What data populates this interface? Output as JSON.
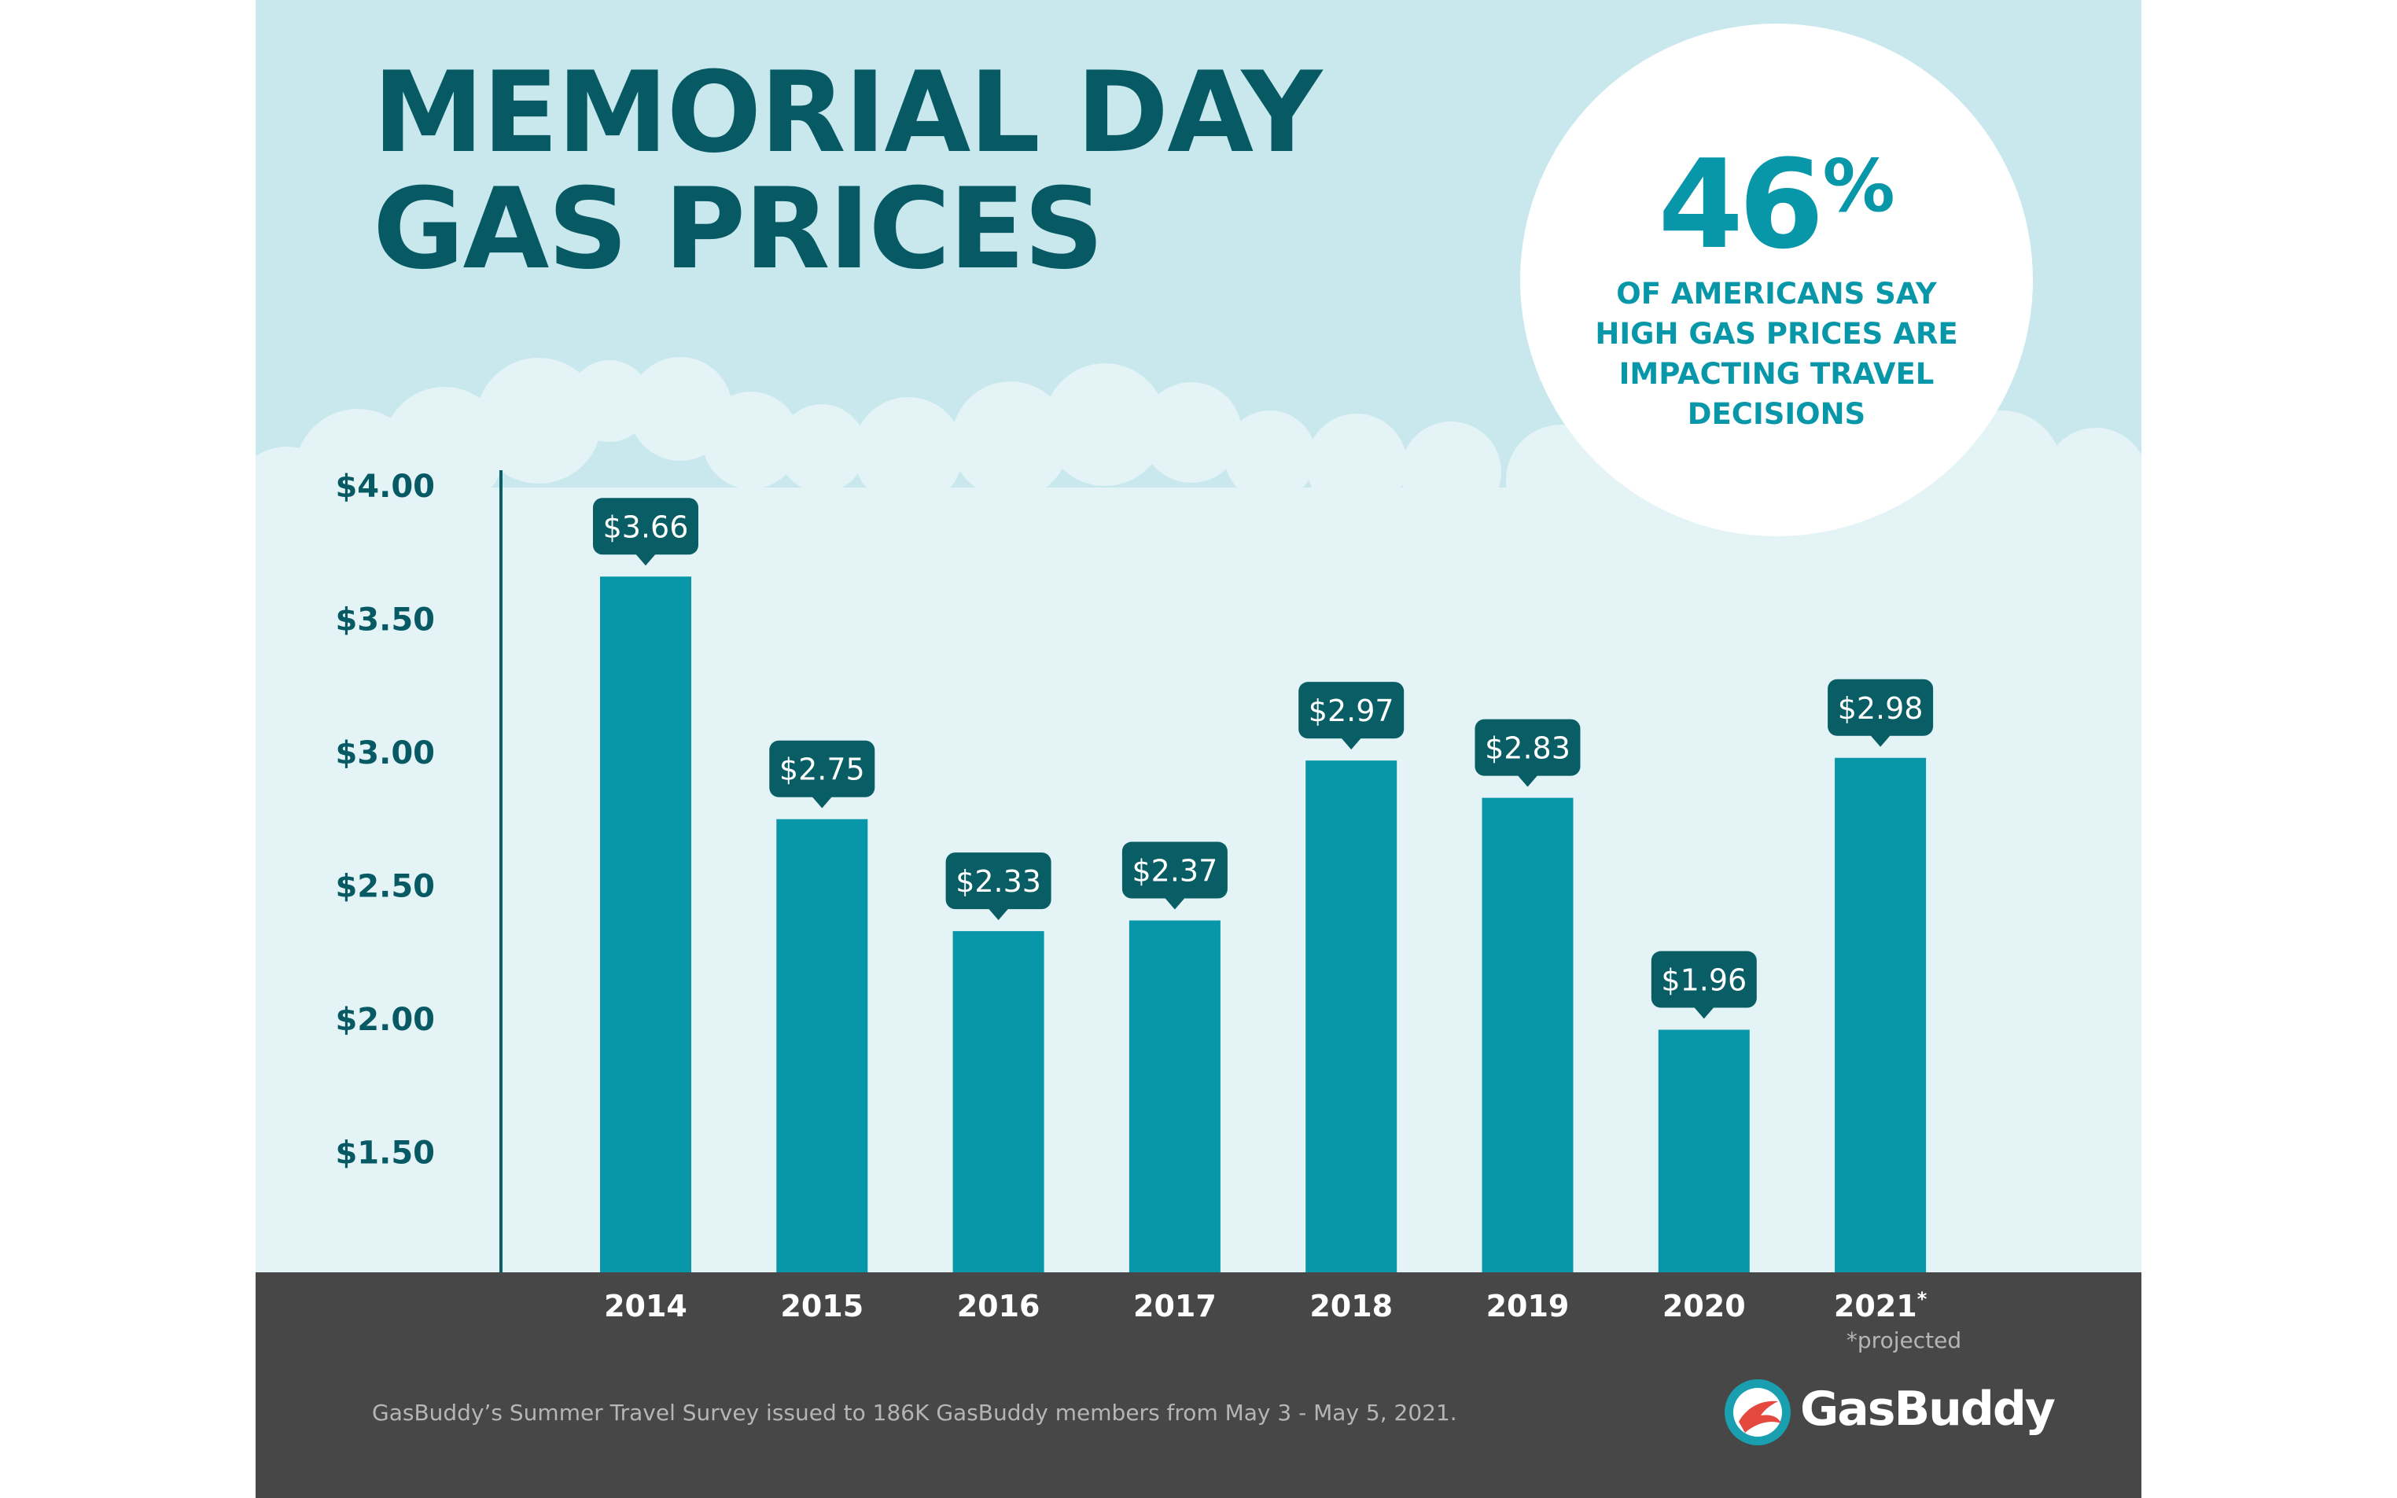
{
  "title": {
    "line1": "MEMORIAL DAY",
    "line2": "GAS PRICES"
  },
  "callout": {
    "value": "46",
    "unit": "%",
    "caption": "OF AMERICANS SAY\nHIGH GAS PRICES ARE\nIMPACTING TRAVEL\nDECISIONS"
  },
  "colors": {
    "sky": "#c9e8ee",
    "cloud": "#e3f3f6",
    "bar": "#0797a8",
    "label_bg": "#095e66",
    "title": "#075a64",
    "footer": "#474747"
  },
  "chart_data": {
    "type": "bar",
    "categories": [
      "2014",
      "2015",
      "2016",
      "2017",
      "2018",
      "2019",
      "2020",
      "2021*"
    ],
    "values": [
      3.66,
      2.75,
      2.33,
      2.37,
      2.97,
      2.83,
      1.96,
      2.98
    ],
    "data_labels": [
      "$3.66",
      "$2.75",
      "$2.33",
      "$2.37",
      "$2.97",
      "$2.83",
      "$1.96",
      "$2.98"
    ],
    "y_ticks": [
      4.0,
      3.5,
      3.0,
      2.5,
      2.0,
      1.5
    ],
    "y_tick_labels": [
      "$4.00",
      "$3.50",
      "$3.00",
      "$2.50",
      "$2.00",
      "$1.50"
    ],
    "ylim": [
      1.05,
      4.0
    ],
    "grid": false,
    "legend": "none"
  },
  "footnote": "*projected",
  "source": "GasBuddy’s Summer Travel Survey issued to 186K GasBuddy members from May 3 - May 5, 2021.",
  "logo": {
    "text": "GasBuddy",
    "icon": "gasbuddy-logo-icon"
  }
}
